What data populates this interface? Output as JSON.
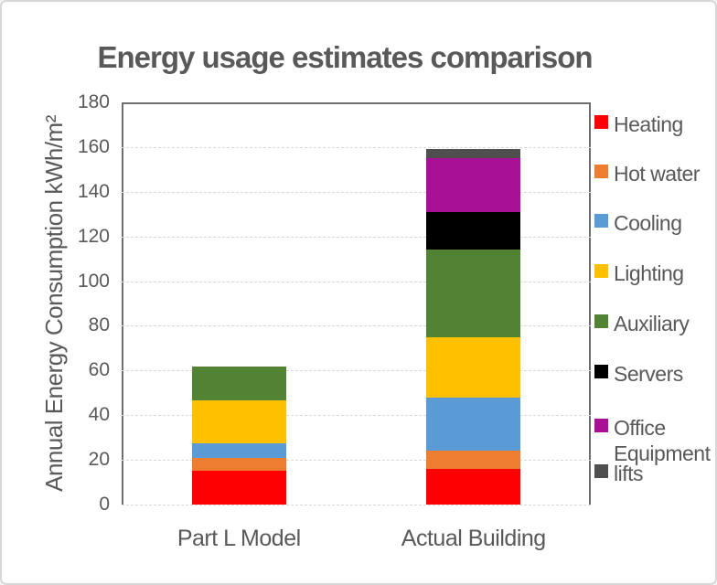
{
  "title": "Energy usage estimates comparison",
  "y_axis": {
    "label": "Annual Energy Consumption  kWh/m²",
    "ticks": [
      "180",
      "160",
      "140",
      "120",
      "100",
      "80",
      "60",
      "40",
      "20",
      "0"
    ]
  },
  "x_axis": {
    "categories": [
      "Part L Model",
      "Actual Building"
    ]
  },
  "legend": {
    "position": "right",
    "items": [
      "Heating",
      "Hot water",
      "Cooling",
      "Lighting",
      "Auxiliary",
      "Servers",
      "Office Equipment",
      "lifts"
    ]
  },
  "colors": {
    "heating": "#FF0000",
    "hot_water": "#ED7D31",
    "cooling": "#5B9BD5",
    "lighting": "#FFC000",
    "auxiliary": "#528233",
    "servers": "#000000",
    "office_equipment": "#A81196",
    "lifts": "#4F4F4F",
    "text": "#595959",
    "gridline": "#D9D9D9",
    "plot_border": "#6E6E6E"
  },
  "chart_data": {
    "type": "bar",
    "stacked": true,
    "title": "Energy usage estimates comparison",
    "ylabel": "Annual Energy Consumption  kWh/m²",
    "ylim": [
      0,
      180
    ],
    "ytick_interval": 20,
    "grid": true,
    "legend_position": "right",
    "categories": [
      "Part L Model",
      "Actual Building"
    ],
    "series": [
      {
        "name": "Heating",
        "color": "#FF0000",
        "values": [
          15,
          16
        ]
      },
      {
        "name": "Hot water",
        "color": "#ED7D31",
        "values": [
          6,
          8
        ]
      },
      {
        "name": "Cooling",
        "color": "#5B9BD5",
        "values": [
          6.5,
          24
        ]
      },
      {
        "name": "Lighting",
        "color": "#FFC000",
        "values": [
          19,
          27
        ]
      },
      {
        "name": "Auxiliary",
        "color": "#528233",
        "values": [
          15.5,
          39
        ]
      },
      {
        "name": "Servers",
        "color": "#000000",
        "values": [
          0,
          17
        ]
      },
      {
        "name": "Office Equipment",
        "color": "#A81196",
        "values": [
          0,
          24
        ]
      },
      {
        "name": "lifts",
        "color": "#4F4F4F",
        "values": [
          0,
          4
        ]
      }
    ],
    "totals": [
      62,
      159
    ]
  }
}
